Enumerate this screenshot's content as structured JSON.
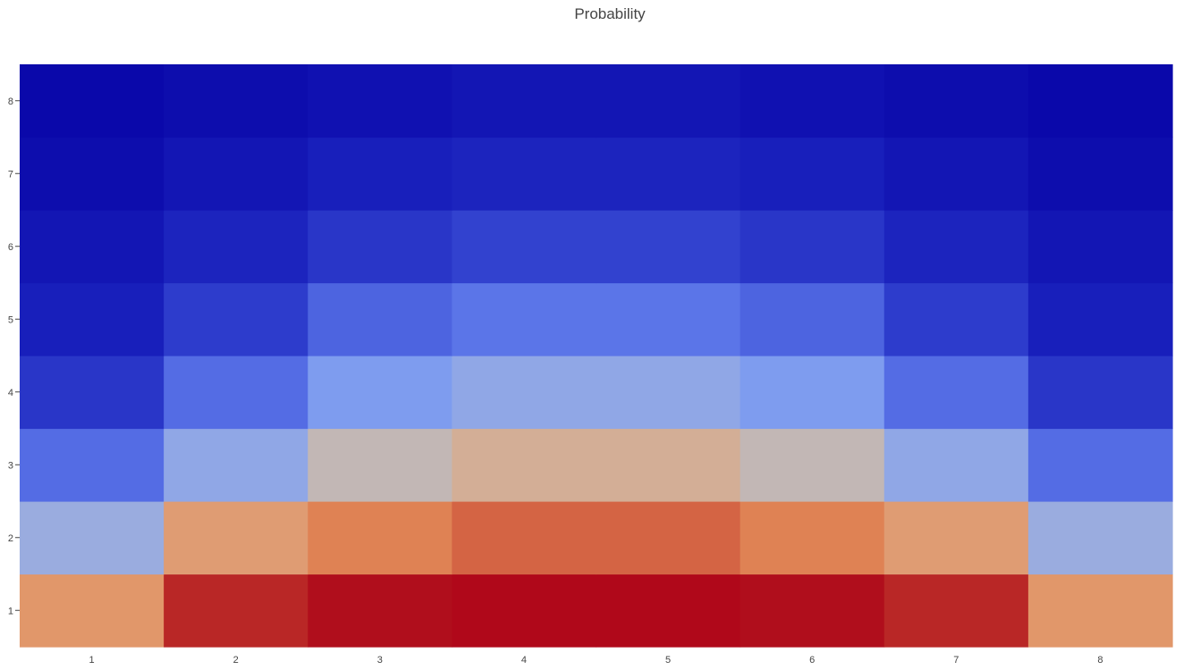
{
  "chart_data": {
    "type": "heatmap",
    "title": "Probability",
    "x": [
      "1",
      "2",
      "3",
      "4",
      "5",
      "6",
      "7",
      "8"
    ],
    "y": [
      "1",
      "2",
      "3",
      "4",
      "5",
      "6",
      "7",
      "8"
    ],
    "colorscale": [
      "#0a08aa",
      "#1a22bd",
      "#3344d0",
      "#5a74e8",
      "#82a0f0",
      "#b8bcc8",
      "#d8ac8e",
      "#e4905e",
      "#dc7a4e",
      "#c53a30",
      "#b11a1f",
      "#b0081a"
    ],
    "grid": false,
    "colorbar": false,
    "z": [
      [
        0.38,
        0.54,
        0.6,
        0.62,
        0.62,
        0.6,
        0.54,
        0.38
      ],
      [
        0.25,
        0.37,
        0.43,
        0.47,
        0.47,
        0.43,
        0.37,
        0.25
      ],
      [
        0.16,
        0.24,
        0.3,
        0.33,
        0.33,
        0.3,
        0.24,
        0.16
      ],
      [
        0.09,
        0.16,
        0.22,
        0.24,
        0.24,
        0.22,
        0.16,
        0.09
      ],
      [
        0.05,
        0.1,
        0.15,
        0.17,
        0.17,
        0.15,
        0.1,
        0.05
      ],
      [
        0.03,
        0.06,
        0.09,
        0.11,
        0.11,
        0.09,
        0.06,
        0.03
      ],
      [
        0.01,
        0.03,
        0.05,
        0.06,
        0.06,
        0.05,
        0.03,
        0.01
      ],
      [
        0.0,
        0.01,
        0.02,
        0.03,
        0.03,
        0.02,
        0.01,
        0.0
      ]
    ]
  }
}
